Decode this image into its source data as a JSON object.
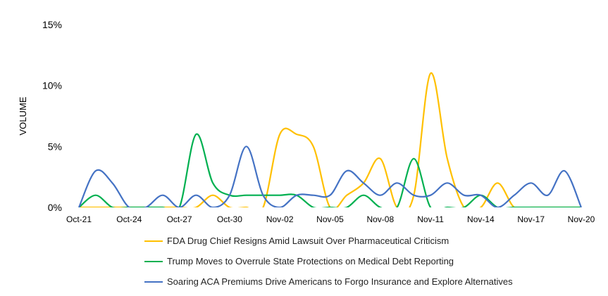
{
  "chart_data": {
    "type": "line",
    "title": "",
    "xlabel": "",
    "ylabel": "VOLUME",
    "ylim": [
      0,
      15
    ],
    "yticks": [
      "0%",
      "5%",
      "10%",
      "15%"
    ],
    "ytick_values": [
      0,
      5,
      10,
      15
    ],
    "xtick_labels": [
      "Oct-21",
      "Oct-24",
      "Oct-27",
      "Oct-30",
      "Nov-02",
      "Nov-05",
      "Nov-08",
      "Nov-11",
      "Nov-14",
      "Nov-17",
      "Nov-20"
    ],
    "xtick_every": 3,
    "x": [
      "Oct-21",
      "Oct-22",
      "Oct-23",
      "Oct-24",
      "Oct-25",
      "Oct-26",
      "Oct-27",
      "Oct-28",
      "Oct-29",
      "Oct-30",
      "Oct-31",
      "Nov-01",
      "Nov-02",
      "Nov-03",
      "Nov-04",
      "Nov-05",
      "Nov-06",
      "Nov-07",
      "Nov-08",
      "Nov-09",
      "Nov-10",
      "Nov-11",
      "Nov-12",
      "Nov-13",
      "Nov-14",
      "Nov-15",
      "Nov-16",
      "Nov-17",
      "Nov-18",
      "Nov-19",
      "Nov-20"
    ],
    "smooth": true,
    "grid": false,
    "legend_position": "bottom",
    "series": [
      {
        "name": "FDA Drug Chief Resigns Amid Lawsuit Over Pharmaceutical Criticism",
        "color": "#FFC000",
        "values": [
          0,
          0,
          0,
          0,
          0,
          0,
          0,
          0,
          1,
          0,
          0,
          0,
          6,
          6,
          5,
          0,
          1,
          2,
          4,
          0,
          1,
          11,
          4,
          0,
          0,
          2,
          0,
          0,
          0,
          0,
          0
        ]
      },
      {
        "name": "Trump Moves to Overrule State Protections on Medical Debt Reporting",
        "color": "#00B050",
        "values": [
          0,
          1,
          0,
          0,
          0,
          0,
          0,
          6,
          2,
          1,
          1,
          1,
          1,
          1,
          0,
          0,
          0,
          1,
          0,
          0,
          4,
          0,
          0,
          0,
          1,
          0,
          0,
          0,
          0,
          0,
          0
        ]
      },
      {
        "name": "Soaring ACA Premiums Drive Americans to Forgo Insurance and Explore Alternatives",
        "color": "#4472C4",
        "values": [
          0,
          3,
          2,
          0,
          0,
          1,
          0,
          1,
          0,
          1,
          5,
          1,
          0,
          1,
          1,
          1,
          3,
          2,
          1,
          2,
          1,
          1,
          2,
          1,
          1,
          0,
          1,
          2,
          1,
          3,
          0
        ]
      }
    ]
  }
}
